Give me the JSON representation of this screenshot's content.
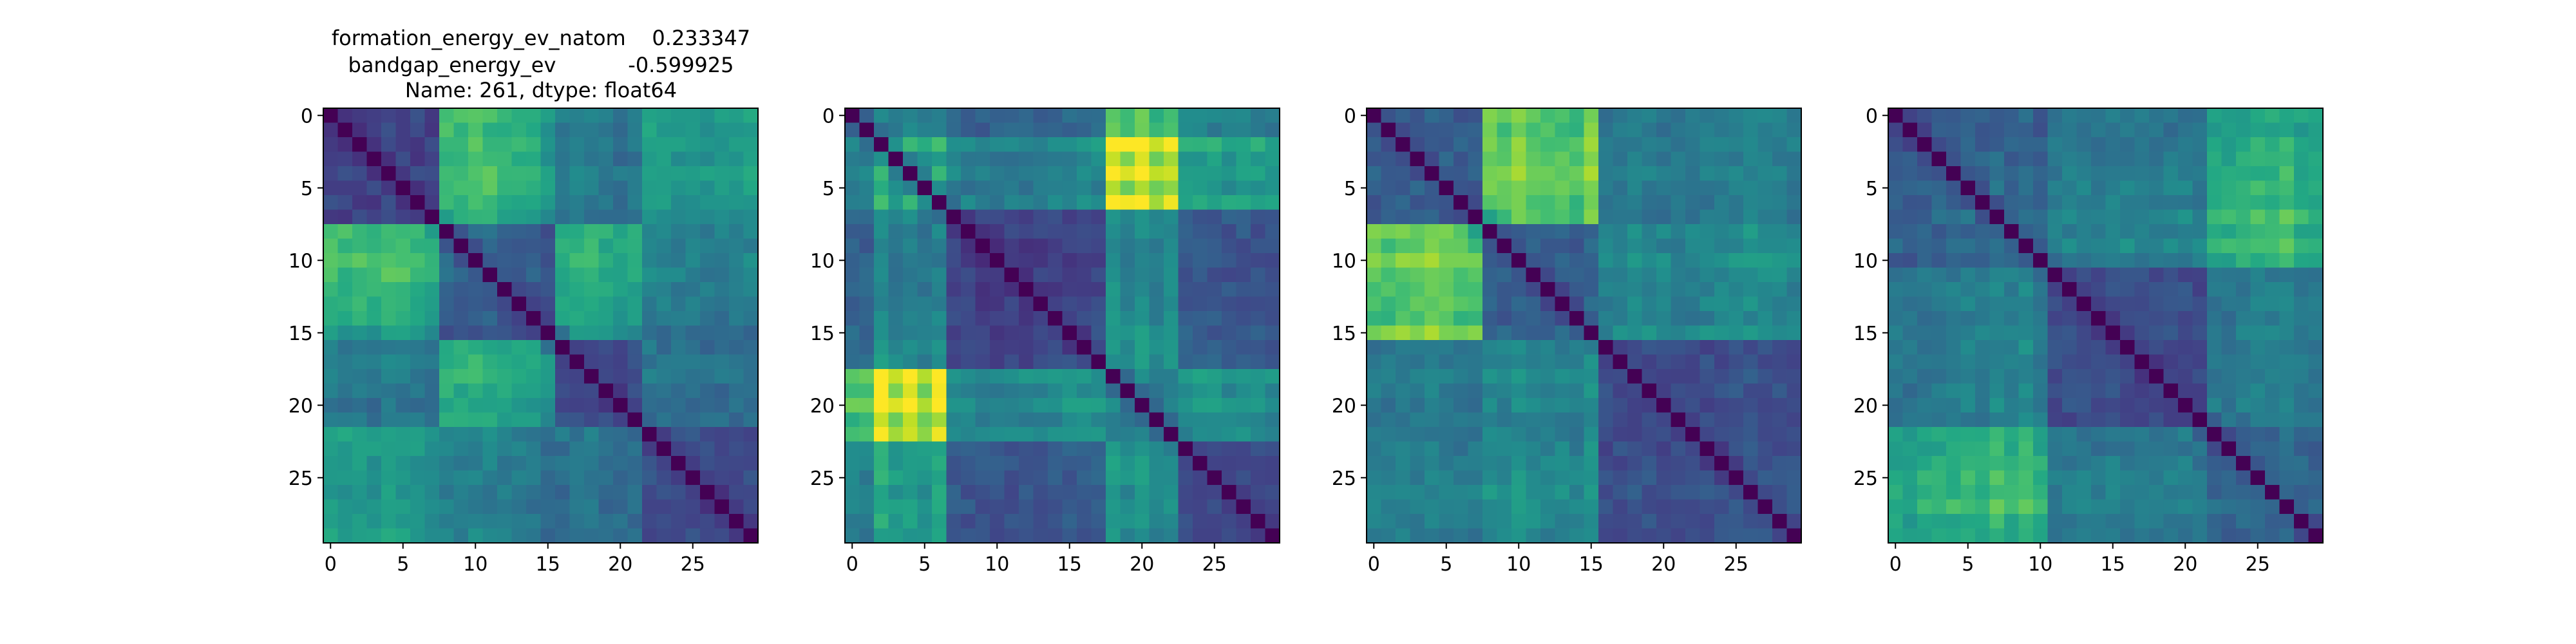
{
  "figure_title": {
    "lines": [
      "formation_energy_ev_natom    0.233347",
      "bandgap_energy_ev           -0.599925",
      "Name: 261, dtype: float64"
    ]
  },
  "chart_data": [
    {
      "type": "heatmap",
      "n": 30,
      "colormap": "viridis",
      "xticks": [
        0,
        5,
        10,
        15,
        20,
        25
      ],
      "yticks": [
        0,
        5,
        10,
        15,
        20,
        25
      ],
      "groups": [
        [
          0,
          7
        ],
        [
          8,
          15
        ],
        [
          16,
          21
        ],
        [
          22,
          29
        ]
      ],
      "block_values": [
        [
          0.22,
          0.6,
          0.42,
          0.55
        ],
        [
          0.6,
          0.25,
          0.55,
          0.38
        ],
        [
          0.42,
          0.55,
          0.25,
          0.38
        ],
        [
          0.55,
          0.38,
          0.38,
          0.22
        ]
      ],
      "row_factors": [
        1.0,
        0.92,
        0.96,
        0.88,
        1.08,
        1.02,
        0.9,
        0.84,
        1.38,
        1.3,
        1.42,
        1.34,
        1.22,
        1.16,
        1.08,
        0.84,
        0.92,
        0.98,
        1.06,
        0.92,
        0.86,
        0.94,
        1.16,
        1.04,
        0.98,
        1.02,
        0.9,
        0.94,
        0.96,
        1.04
      ]
    },
    {
      "type": "heatmap",
      "n": 30,
      "colormap": "viridis",
      "xticks": [
        0,
        5,
        10,
        15,
        20,
        25
      ],
      "yticks": [
        0,
        5,
        10,
        15,
        20,
        25
      ],
      "groups": [
        [
          0,
          6
        ],
        [
          7,
          17
        ],
        [
          18,
          22
        ],
        [
          23,
          29
        ]
      ],
      "block_values": [
        [
          0.4,
          0.4,
          0.65,
          0.5
        ],
        [
          0.4,
          0.25,
          0.45,
          0.32
        ],
        [
          0.65,
          0.45,
          0.3,
          0.45
        ],
        [
          0.5,
          0.32,
          0.45,
          0.25
        ]
      ],
      "row_factors": [
        0.84,
        0.8,
        1.72,
        1.3,
        1.5,
        1.2,
        1.62,
        0.88,
        0.8,
        0.72,
        0.7,
        0.76,
        0.74,
        0.78,
        0.82,
        0.86,
        0.9,
        1.0,
        1.62,
        1.3,
        1.58,
        1.18,
        1.42,
        0.96,
        0.94,
        0.9,
        0.84,
        0.9,
        0.84,
        0.76
      ]
    },
    {
      "type": "heatmap",
      "n": 30,
      "colormap": "viridis",
      "xticks": [
        0,
        5,
        10,
        15,
        20,
        25
      ],
      "yticks": [
        0,
        5,
        10,
        15,
        20,
        25
      ],
      "groups": [
        [
          0,
          7
        ],
        [
          8,
          15
        ],
        [
          16,
          29
        ]
      ],
      "block_values": [
        [
          0.3,
          0.72,
          0.42
        ],
        [
          0.72,
          0.28,
          0.45
        ],
        [
          0.42,
          0.45,
          0.25
        ]
      ],
      "row_factors": [
        0.96,
        0.9,
        1.04,
        1.0,
        1.12,
        1.06,
        0.94,
        0.92,
        1.16,
        1.06,
        1.24,
        1.1,
        1.0,
        1.02,
        0.94,
        1.3,
        0.9,
        0.94,
        1.02,
        0.96,
        0.9,
        0.86,
        0.9,
        0.96,
        1.0,
        1.06,
        1.12,
        1.08,
        1.0,
        0.94
      ]
    },
    {
      "type": "heatmap",
      "n": 30,
      "colormap": "viridis",
      "xticks": [
        0,
        5,
        10,
        15,
        20,
        25
      ],
      "yticks": [
        0,
        5,
        10,
        15,
        20,
        25
      ],
      "groups": [
        [
          0,
          10
        ],
        [
          11,
          21
        ],
        [
          22,
          29
        ]
      ],
      "block_values": [
        [
          0.3,
          0.42,
          0.58
        ],
        [
          0.42,
          0.25,
          0.4
        ],
        [
          0.58,
          0.4,
          0.3
        ]
      ],
      "row_factors": [
        0.92,
        0.88,
        0.96,
        1.0,
        1.04,
        1.18,
        1.02,
        1.28,
        1.1,
        1.34,
        1.0,
        0.9,
        0.96,
        0.94,
        0.88,
        1.02,
        0.96,
        0.92,
        0.9,
        0.94,
        0.98,
        0.88,
        1.08,
        1.02,
        1.12,
        1.2,
        1.16,
        1.32,
        1.04,
        0.98
      ]
    }
  ]
}
